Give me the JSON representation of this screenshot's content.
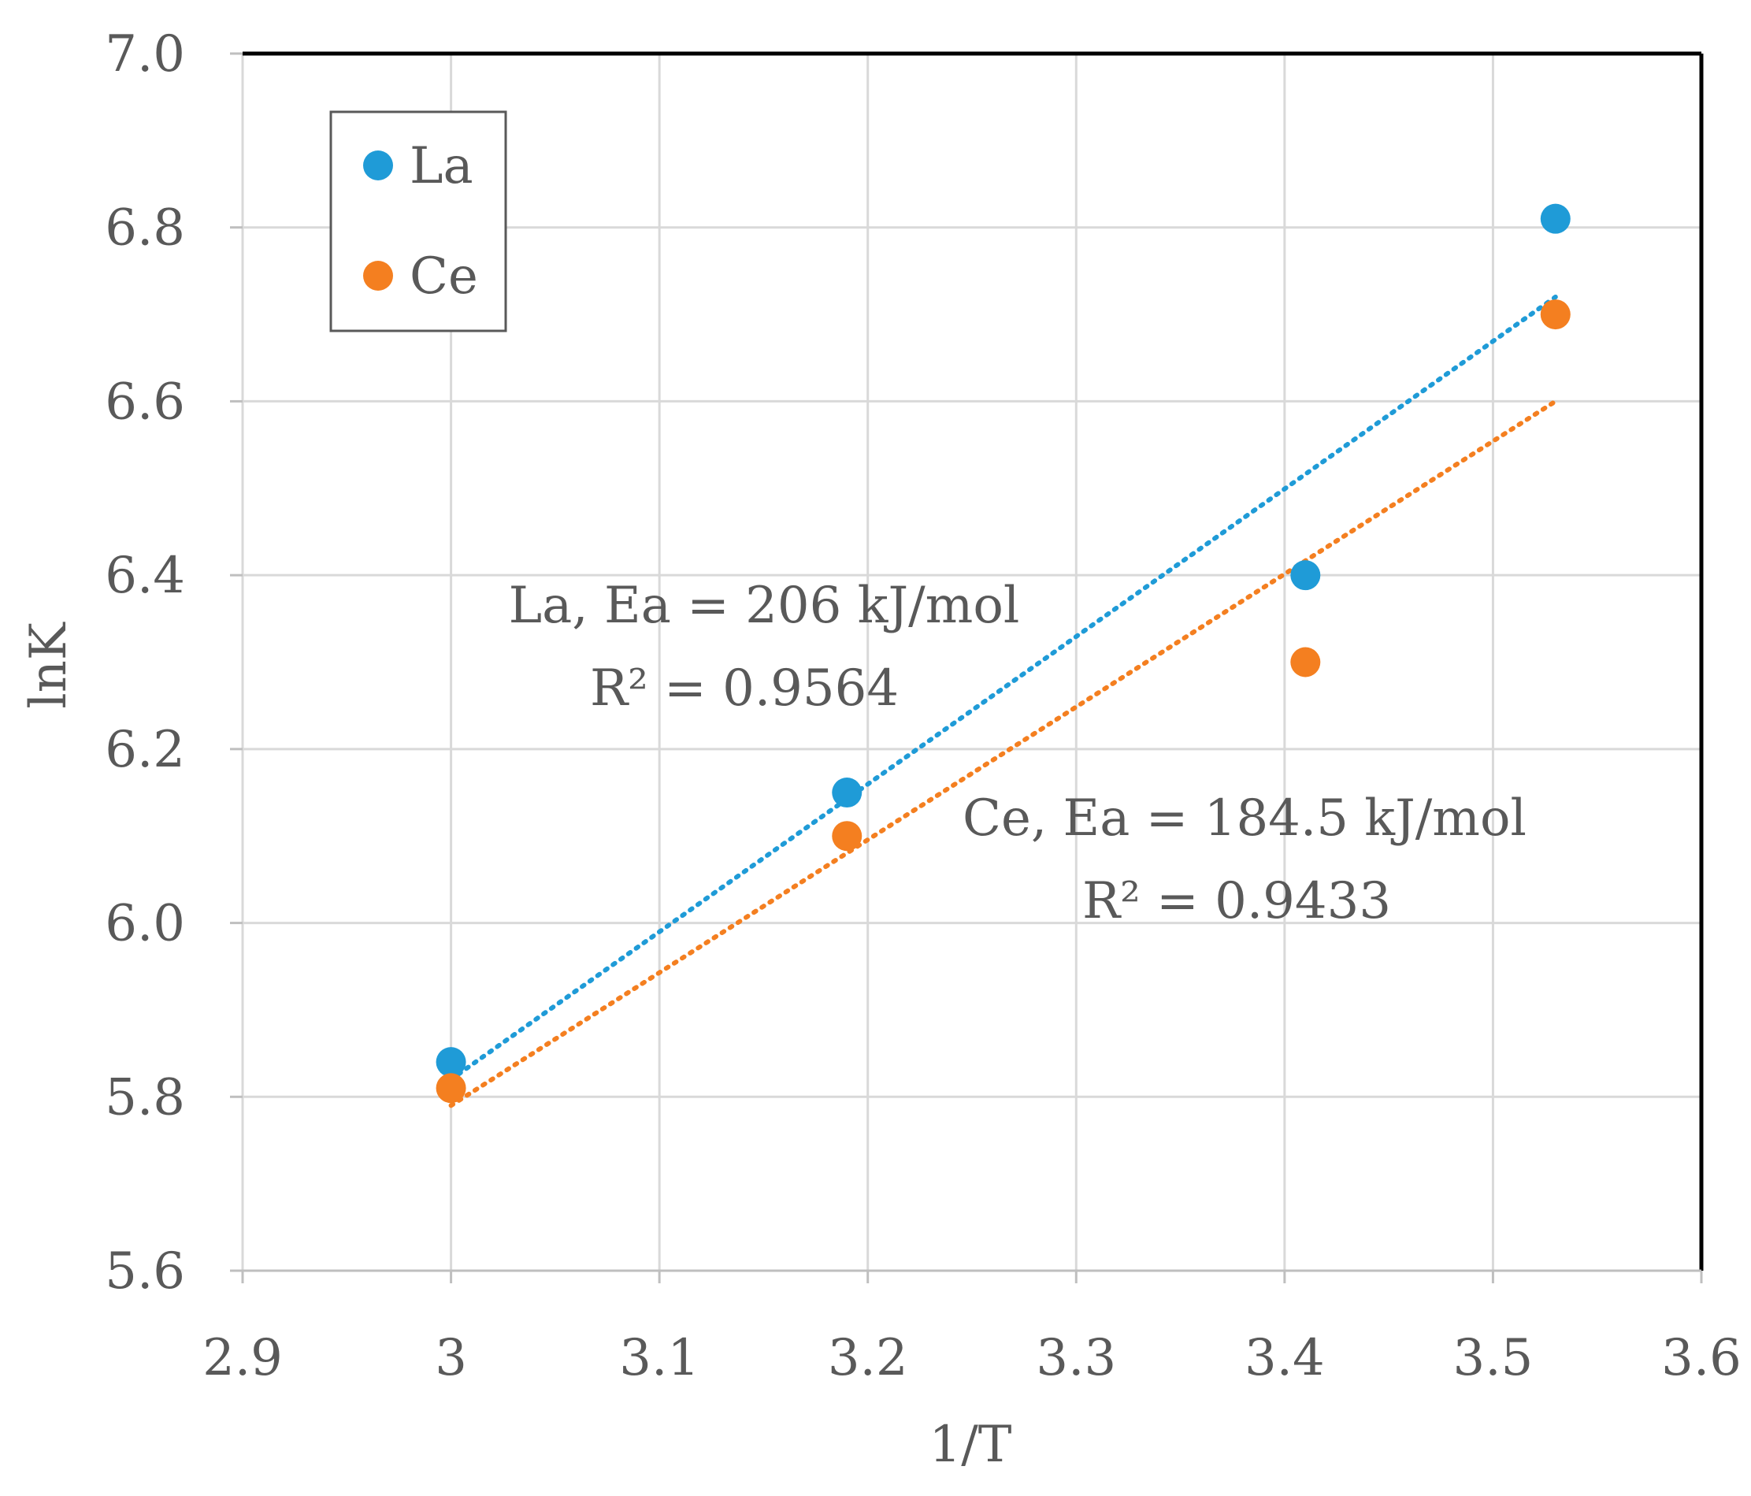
{
  "chart_data": {
    "type": "scatter",
    "title": "",
    "xlabel": "1/T",
    "ylabel": "lnK",
    "xlim": [
      2.9,
      3.6
    ],
    "ylim": [
      5.6,
      7.0
    ],
    "xticks": [
      2.9,
      3.0,
      3.1,
      3.2,
      3.3,
      3.4,
      3.5,
      3.6
    ],
    "xtick_labels": [
      "2.9",
      "3",
      "3.1",
      "3.2",
      "3.3",
      "3.4",
      "3.5",
      "3.6"
    ],
    "yticks": [
      5.6,
      5.8,
      6.0,
      6.2,
      6.4,
      6.6,
      6.8,
      7.0
    ],
    "ytick_labels": [
      "5.6",
      "5.8",
      "6.0",
      "6.2",
      "6.4",
      "6.6",
      "6.8",
      "7.0"
    ],
    "grid": true,
    "legend_position": "top-left",
    "series": [
      {
        "name": "La",
        "color": "#1f9bd7",
        "x": [
          3.0,
          3.19,
          3.41,
          3.53
        ],
        "y": [
          5.84,
          6.15,
          6.4,
          6.81
        ],
        "trendline": {
          "style": "dotted",
          "x": [
            3.0,
            3.53
          ],
          "y": [
            5.82,
            6.72
          ]
        },
        "annotation": [
          "La, Ea = 206 kJ/mol",
          "R² = 0.9564"
        ]
      },
      {
        "name": "Ce",
        "color": "#f47f20",
        "x": [
          3.0,
          3.19,
          3.41,
          3.53
        ],
        "y": [
          5.81,
          6.1,
          6.3,
          6.7
        ],
        "trendline": {
          "style": "dotted",
          "x": [
            3.0,
            3.53
          ],
          "y": [
            5.79,
            6.6
          ]
        },
        "annotation": [
          "Ce, Ea = 184.5 kJ/mol",
          "R² = 0.9433"
        ]
      }
    ]
  }
}
